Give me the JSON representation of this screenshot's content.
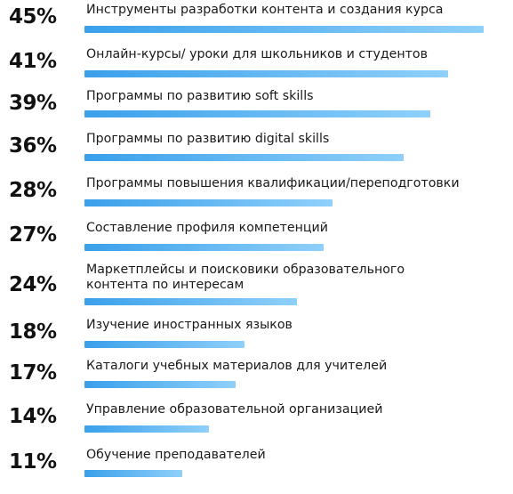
{
  "chart_data": {
    "type": "bar",
    "orientation": "horizontal",
    "categories": [
      "Инструменты разработки контента и создания курса",
      "Онлайн-курсы/ уроки для школьников и студентов",
      "Программы по развитию soft skills",
      "Программы по развитию digital skills",
      "Программы повышения квалификации/переподготовки",
      "Составление профиля компетенций",
      "Маркетплейсы и поисковики образовательного\nконтента по интересам",
      "Изучение иностранных языков",
      "Каталоги учебных материалов для учителей",
      "Управление образовательной организацией",
      "Обучение преподавателей"
    ],
    "values": [
      45,
      41,
      39,
      36,
      28,
      27,
      24,
      18,
      17,
      14,
      11
    ],
    "value_labels": [
      "45%",
      "41%",
      "39%",
      "36%",
      "28%",
      "27%",
      "24%",
      "18%",
      "17%",
      "14%",
      "11%"
    ],
    "unit": "%",
    "xlim": [
      0,
      45
    ],
    "grid": false,
    "legend": "none",
    "colors": {
      "bar_start": "#3aa0ea",
      "bar_end": "#8fd0fb",
      "text": "#1a1a1a",
      "value_text": "#111111"
    }
  }
}
